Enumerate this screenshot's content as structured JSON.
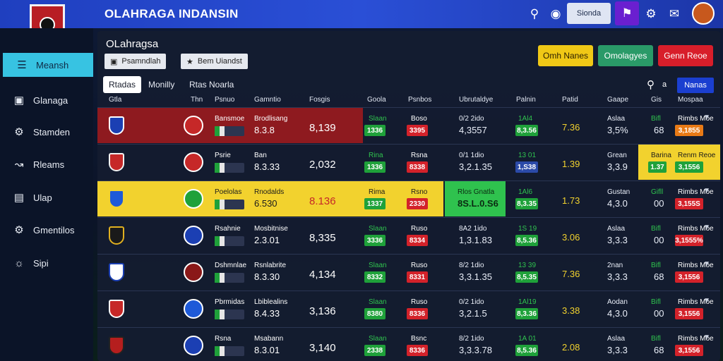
{
  "app": {
    "title": "OLAHRAGA INDANSIN",
    "search_button": "Sionda"
  },
  "sidebar": {
    "items": [
      {
        "label": "Meansh",
        "icon": "list-icon",
        "active": true
      },
      {
        "label": "Glanaga",
        "icon": "square-icon",
        "active": false
      },
      {
        "label": "Stamden",
        "icon": "gears-icon",
        "active": false
      },
      {
        "label": "Rleams",
        "icon": "chart-icon",
        "active": false
      },
      {
        "label": "Ulap",
        "icon": "document-icon",
        "active": false
      },
      {
        "label": "Gmentilos",
        "icon": "gear-icon",
        "active": false
      },
      {
        "label": "Sipi",
        "icon": "settings-icon",
        "active": false
      }
    ]
  },
  "panel": {
    "title": "OLahragsa",
    "chips": [
      "Psamndlah",
      "Bem Uiandst"
    ],
    "actions": [
      {
        "label": "Omh Nanes",
        "color": "#f0c816",
        "text": "#2a1f00"
      },
      {
        "label": "Omolagyes",
        "color": "#2a9a68",
        "text": "#ffffff"
      },
      {
        "label": "Genn Reoe",
        "color": "#d81e2a",
        "text": "#ffffff"
      }
    ],
    "tabs": [
      "Rtadas",
      "Monilly",
      "Rtas Noarla"
    ],
    "search_label": "a",
    "blue_button": "Nanas"
  },
  "table": {
    "headers": [
      "Gtla",
      "Thn",
      "Psnuo",
      "Gamntio",
      "Fosgis",
      "Goola",
      "Psnbos",
      "Ubrutaldye",
      "Palnin",
      "Patid",
      "Gaape",
      "Gis",
      "Mospaa"
    ],
    "rows": [
      {
        "style": "red",
        "label": "Bansmoe",
        "sub": "Brodlisang",
        "num1": "8.3.8",
        "num2": "8,139",
        "g1": "1336",
        "pill_top1": "Slaan",
        "r1": "3395",
        "pill_top2": "Boso",
        "num3": "4,3557",
        "num3_top": "0/2 2ido",
        "pill3": "8,3.56",
        "pill3_top": "1Al4",
        "num4": "7.36",
        "num5": "3,5%",
        "num5_top": "Aslaa",
        "num6": "68",
        "num6_top": "Bifl",
        "pill4": "3,1855",
        "pill4_color": "o",
        "pill4_top": "Rimbs Moe"
      },
      {
        "style": "plain",
        "label": "Psrie",
        "sub": "Ban",
        "num1": "8.3.33",
        "num2": "2,032",
        "g1": "1336",
        "pill_top1": "Rina",
        "r1": "8338",
        "pill_top2": "Rsna",
        "num3": "3,2.1.35",
        "num3_top": "0/1 1dio",
        "pill3": "1,S38",
        "pill3_top": "13 01",
        "pill3_color": "b",
        "num4": "1.39",
        "num5": "3,3.9",
        "num5_top": "Grean",
        "num6": "1.37",
        "num6_top": "Barina",
        "pill4": "3,1556",
        "pill4_color": "g",
        "pill4_top": "Renm Reoe",
        "yellow_box": true
      },
      {
        "style": "yellow",
        "label": "Poelolas",
        "sub": "Rnodalds",
        "num1": "6.530",
        "num2": "8.136",
        "g1": "1337",
        "pill_top1": "Rima",
        "r1": "2330",
        "pill_top2": "Rsno",
        "green_top": "Rlos Gnatla",
        "green_main": "8S.L.0.S6",
        "pill3": "8,3.35",
        "pill3_top": "1Al6",
        "num4": "1.73",
        "num5": "4,3.0",
        "num5_top": "Gustan",
        "num6": "00",
        "num6_top": "Gifll",
        "pill4": "3,155S",
        "pill4_color": "r",
        "pill4_top": "Rimbs Moe"
      },
      {
        "style": "plain",
        "label": "Rsahnie",
        "sub": "Mosbitnise",
        "num1": "2.3.01",
        "num2": "8,335",
        "g1": "3336",
        "pill_top1": "Slaan",
        "r1": "8334",
        "pill_top2": "Ruso",
        "num3": "1,3.1.83",
        "num3_top": "8A2 1ido",
        "pill3": "8,5.36",
        "pill3_top": "1S 19",
        "num4": "3.06",
        "num5": "3,3.3",
        "num5_top": "Aslaa",
        "num6": "00",
        "num6_top": "Bifl",
        "pill4": "3,1555%",
        "pill4_color": "r",
        "pill4_top": "Rimbs Moe"
      },
      {
        "style": "plain",
        "label": "Dshmnlae",
        "sub": "Rsnlabrite",
        "num1": "8.3.30",
        "num2": "4,134",
        "g1": "8332",
        "pill_top1": "Slaan",
        "r1": "8331",
        "pill_top2": "Ruso",
        "num3": "3,3.1.35",
        "num3_top": "8/2 1dio",
        "pill3": "8,5.35",
        "pill3_top": "13 39",
        "num4": "7.36",
        "num5": "3,3.3",
        "num5_top": "2nan",
        "num6": "68",
        "num6_top": "Bifl",
        "pill4": "3,1556",
        "pill4_color": "r",
        "pill4_top": "Rimbs Moe"
      },
      {
        "style": "plain",
        "label": "Pbrmidas",
        "sub": "Lbiblealins",
        "num1": "8.4.33",
        "num2": "3,136",
        "g1": "8380",
        "pill_top1": "Slaan",
        "r1": "8336",
        "pill_top2": "Ruso",
        "num3": "3,2.1.5",
        "num3_top": "0/2 1ido",
        "pill3": "8,3.36",
        "pill3_top": "1Al19",
        "num4": "3.38",
        "num5": "4,3.0",
        "num5_top": "Aodan",
        "num6": "00",
        "num6_top": "Bifl",
        "pill4": "3,1556",
        "pill4_color": "r",
        "pill4_top": "Rimbs Moe"
      },
      {
        "style": "plain",
        "label": "Rsna",
        "sub": "Msabann",
        "num1": "8.3.01",
        "num2": "3,140",
        "g1": "2338",
        "pill_top1": "Slaan",
        "r1": "8336",
        "pill_top2": "Bsnc",
        "num3": "3,3.3.78",
        "num3_top": "8/2 1ido",
        "pill3": "8,5.36",
        "pill3_top": "1A 01",
        "num4": "2.08",
        "num5": "3,3.3",
        "num5_top": "Aslaa",
        "num6": "68",
        "num6_top": "Bifl",
        "pill4": "3,1556",
        "pill4_color": "r",
        "pill4_top": "Rimbs Moe"
      }
    ]
  }
}
